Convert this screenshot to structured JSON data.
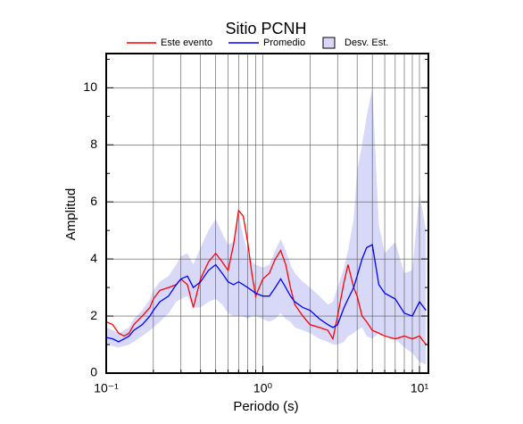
{
  "chart_data": {
    "type": "line",
    "title": "Sitio PCNH",
    "x_label": "Periodo (s)",
    "y_label": "Amplitud",
    "xlog": true,
    "grid": true,
    "xlim": [
      0.1,
      11.4
    ],
    "ylim": [
      0,
      11.2
    ],
    "xticks": [
      {
        "value": 0.1,
        "label": "10⁻¹"
      },
      {
        "value": 1,
        "label": "10⁰"
      },
      {
        "value": 10,
        "label": "10¹"
      }
    ],
    "xminor": [
      0.2,
      0.3,
      0.4,
      0.5,
      0.6,
      0.7,
      0.8,
      0.9,
      2,
      3,
      4,
      5,
      6,
      7,
      8,
      9
    ],
    "yticks": [
      0,
      2,
      4,
      6,
      8,
      10
    ],
    "yminor": [
      1,
      3,
      5,
      7,
      9,
      11
    ],
    "x": [
      0.1,
      0.11,
      0.12,
      0.13,
      0.14,
      0.15,
      0.17,
      0.19,
      0.2,
      0.22,
      0.25,
      0.28,
      0.3,
      0.33,
      0.36,
      0.4,
      0.45,
      0.5,
      0.55,
      0.6,
      0.65,
      0.7,
      0.75,
      0.8,
      0.85,
      0.9,
      1.0,
      1.1,
      1.2,
      1.3,
      1.4,
      1.5,
      1.6,
      1.8,
      2.0,
      2.3,
      2.6,
      2.8,
      3.0,
      3.3,
      3.5,
      3.8,
      4.0,
      4.3,
      4.6,
      5.0,
      5.5,
      6,
      7,
      8,
      9,
      10,
      11
    ],
    "band": {
      "name": "Desv. Est.",
      "color": "#d8d8f8",
      "upper": [
        1.6,
        1.5,
        1.4,
        1.5,
        1.6,
        1.9,
        2.2,
        2.6,
        2.9,
        3.2,
        3.4,
        3.8,
        4.1,
        4.2,
        3.8,
        4.4,
        5.0,
        5.4,
        4.9,
        4.5,
        4.6,
        5.6,
        4.8,
        4.2,
        3.9,
        3.8,
        3.7,
        3.8,
        4.3,
        4.7,
        4.3,
        3.8,
        3.5,
        3.2,
        3.0,
        2.7,
        2.4,
        2.5,
        3.0,
        3.7,
        4.3,
        5.4,
        7.1,
        8.0,
        9.0,
        10.0,
        5.2,
        4.2,
        4.6,
        3.5,
        3.6,
        6.3,
        5.0
      ],
      "lower": [
        1.0,
        0.95,
        0.9,
        0.95,
        1.0,
        1.1,
        1.3,
        1.5,
        1.6,
        1.8,
        2.1,
        2.5,
        2.6,
        2.7,
        2.3,
        2.3,
        2.5,
        2.6,
        2.4,
        2.1,
        2.0,
        2.0,
        2.0,
        1.9,
        2.0,
        2.0,
        1.9,
        1.8,
        1.9,
        2.1,
        1.9,
        1.8,
        1.6,
        1.5,
        1.4,
        1.2,
        1.1,
        1.0,
        1.0,
        1.1,
        1.3,
        1.4,
        1.5,
        1.6,
        1.3,
        1.2,
        1.4,
        1.3,
        1.2,
        0.9,
        0.7,
        0.4,
        0.3
      ]
    },
    "series": [
      {
        "name": "Este evento",
        "color": "#ff0000",
        "values": [
          1.8,
          1.7,
          1.4,
          1.3,
          1.4,
          1.7,
          2.0,
          2.3,
          2.6,
          2.9,
          3.0,
          3.1,
          3.3,
          3.1,
          2.3,
          3.3,
          3.9,
          4.2,
          3.9,
          3.6,
          4.5,
          5.7,
          5.5,
          4.6,
          3.5,
          2.7,
          3.3,
          3.5,
          4.0,
          4.3,
          3.8,
          3.0,
          2.4,
          2.0,
          1.7,
          1.6,
          1.5,
          1.2,
          2.0,
          3.2,
          3.8,
          3.0,
          2.7,
          2.0,
          1.8,
          1.5,
          1.4,
          1.3,
          1.2,
          1.3,
          1.2,
          1.3,
          1.0
        ]
      },
      {
        "name": "Promedio",
        "color": "#0000ff",
        "values": [
          1.25,
          1.2,
          1.1,
          1.2,
          1.3,
          1.5,
          1.7,
          2.0,
          2.2,
          2.5,
          2.7,
          3.1,
          3.3,
          3.4,
          3.0,
          3.2,
          3.6,
          3.8,
          3.5,
          3.2,
          3.1,
          3.2,
          3.1,
          3.0,
          2.9,
          2.8,
          2.7,
          2.7,
          3.0,
          3.3,
          3.0,
          2.7,
          2.5,
          2.3,
          2.2,
          1.9,
          1.7,
          1.6,
          1.7,
          2.3,
          2.6,
          3.0,
          3.4,
          4.0,
          4.4,
          4.5,
          3.1,
          2.8,
          2.6,
          2.1,
          2.0,
          2.5,
          2.2
        ]
      }
    ]
  }
}
